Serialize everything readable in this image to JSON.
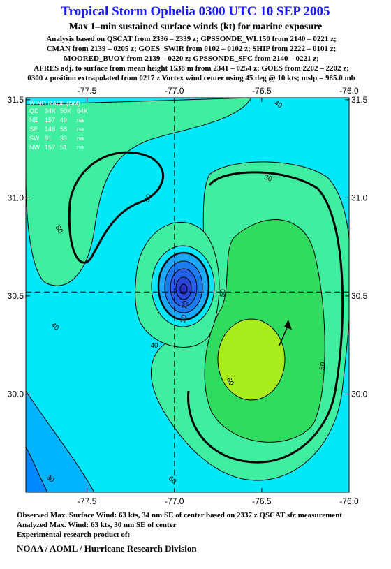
{
  "header": {
    "title": "Tropical Storm Ophelia 0300 UTC 10 SEP 2005",
    "subtitle": "Max 1–min sustained surface winds (kt) for marine exposure",
    "lines": [
      "Analysis based on  QSCAT from 2336 – 2339 z;  GPSSONDE_WL150 from 2140 – 0221 z;",
      "CMAN from 2139 – 0205 z;  GOES_SWIR from 0102 – 0102 z;  SHIP from 2222 – 0101 z;",
      "MOORED_BUOY from 2139 – 0220 z;  GPSSONDE_SFC from 2140 – 0221 z;",
      "AFRES adj. to surface from mean height 1538 m from 2341 – 0254 z;  GOES from 2202 – 2202 z;",
      "0300 z position extrapolated from 0217 z Vortex wind center using 45 deg @ 10 kts; mslp = 985.0 mb"
    ]
  },
  "map": {
    "xlim": [
      -77.85,
      -76.0
    ],
    "ylim": [
      29.5,
      31.51
    ],
    "xticks": [
      {
        "value": -77.5,
        "label": "-77.5"
      },
      {
        "value": -77.0,
        "label": "-77.0"
      },
      {
        "value": -76.5,
        "label": "-76.5"
      },
      {
        "value": -76.0,
        "label": "-76.0"
      }
    ],
    "yticks": [
      {
        "value": 31.5,
        "label": "31.5"
      },
      {
        "value": 31.0,
        "label": "31.0"
      },
      {
        "value": 30.5,
        "label": "30.5"
      },
      {
        "value": 30.0,
        "label": "30.0"
      }
    ],
    "center": {
      "lon": -77.0,
      "lat": 30.52
    },
    "contour_labels": [
      "40",
      "50",
      "50",
      "30",
      "50",
      "30",
      "40",
      "40",
      "60",
      "50",
      "30",
      "60",
      "20"
    ],
    "wind_radii": {
      "title": "WIND RADII (NM)",
      "header": [
        "QD",
        "34K",
        "50K",
        "64K"
      ],
      "rows": [
        [
          "NE",
          "157",
          "49",
          "na"
        ],
        [
          "SE",
          "146",
          "58",
          "na"
        ],
        [
          "SW",
          "91",
          "33",
          "na"
        ],
        [
          "NW",
          "157",
          "51",
          "na"
        ]
      ]
    }
  },
  "footer": {
    "lines": [
      "Observed Max. Surface Wind: 63 kts, 34 nm SE of center based on 2337 z QSCAT sfc measurement",
      "Analyzed Max. Wind: 63 kts, 30 nm SE of center",
      "Experimental research product of:"
    ],
    "division": "NOAA / AOML / Hurricane Research Division"
  }
}
